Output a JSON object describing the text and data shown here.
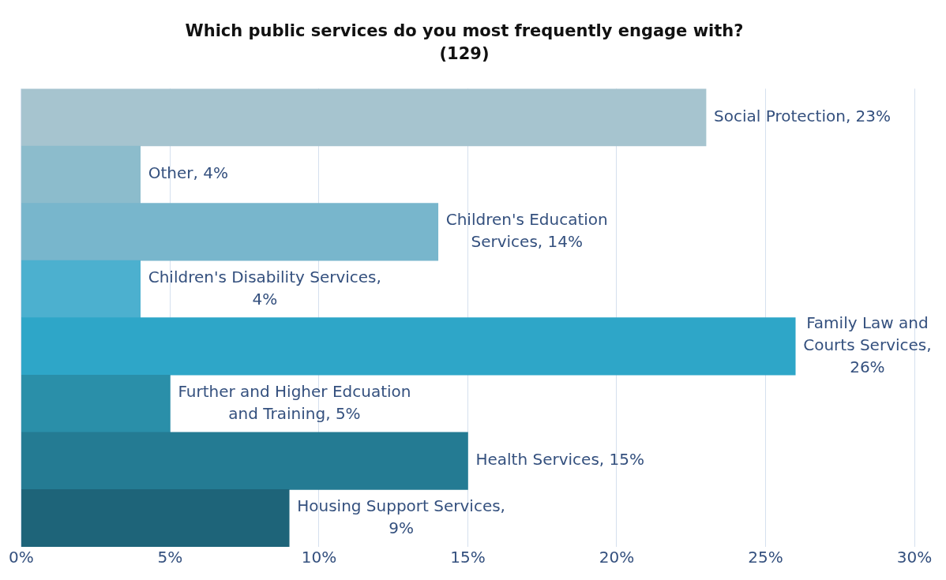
{
  "chart_data": {
    "type": "bar",
    "orientation": "horizontal",
    "title": "Which public services do you most frequently engage with?",
    "subtitle": "(129)",
    "categories": [
      null,
      null,
      null,
      null,
      null,
      null,
      null,
      null
    ],
    "values": [
      23,
      4,
      14,
      4,
      26,
      5,
      15,
      9
    ],
    "colors": [
      "#a6c4cf",
      "#8cbccc",
      "#78b6cc",
      "#4cb0cf",
      "#2ea6c8",
      "#2a8fa9",
      "#247b93",
      "#1e6479"
    ],
    "value_labels": [
      "Social Protection, 23%",
      "Other, 4%",
      "Children's Education Services, 14%",
      "Children's Disability Services, 4%",
      "Family Law and Courts Services, 26%",
      "Further and Higher Edcuation and Training, 5%",
      "Health Services, 15%",
      "Housing Support Services, 9%"
    ],
    "xlim": [
      0,
      30
    ],
    "xticks": [
      {
        "value": 0,
        "label": "0%"
      },
      {
        "value": 5,
        "label": "5%"
      },
      {
        "value": 10,
        "label": "10%"
      },
      {
        "value": 15,
        "label": "15%"
      },
      {
        "value": 20,
        "label": "20%"
      },
      {
        "value": 25,
        "label": "25%"
      },
      {
        "value": 30,
        "label": "30%"
      }
    ],
    "grid": "x",
    "tick_labels": "x"
  }
}
